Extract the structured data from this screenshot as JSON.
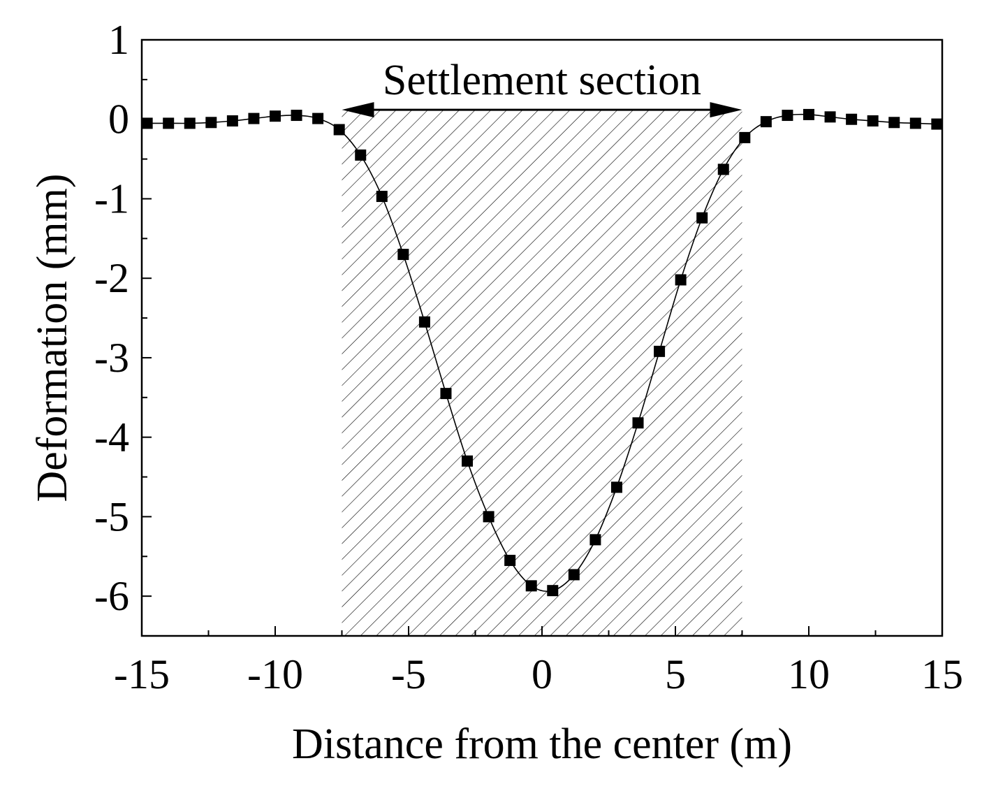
{
  "chart_data": {
    "type": "scatter",
    "xlabel": "Distance from the center (m)",
    "ylabel": "Deformation (mm)",
    "xlim": [
      -15,
      15
    ],
    "ylim": [
      -6.5,
      1
    ],
    "x_ticks": [
      -15,
      -10,
      -5,
      0,
      5,
      10,
      15
    ],
    "x_tick_labels": [
      "-15",
      "-10",
      "-5",
      "0",
      "5",
      "10",
      "15"
    ],
    "y_ticks": [
      1,
      0,
      -1,
      -2,
      -3,
      -4,
      -5,
      -6
    ],
    "y_tick_labels": [
      "1",
      "0",
      "-1",
      "-2",
      "-3",
      "-4",
      "-5",
      "-6"
    ],
    "grid": false,
    "series": [
      {
        "marker": "square",
        "line": "smooth",
        "color": "#000000",
        "points": [
          [
            -14.8,
            -0.05
          ],
          [
            -14.0,
            -0.05
          ],
          [
            -13.2,
            -0.05
          ],
          [
            -12.4,
            -0.04
          ],
          [
            -11.6,
            -0.02
          ],
          [
            -10.8,
            0.01
          ],
          [
            -10.0,
            0.04
          ],
          [
            -9.2,
            0.05
          ],
          [
            -8.4,
            0.01
          ],
          [
            -7.6,
            -0.13
          ],
          [
            -6.8,
            -0.45
          ],
          [
            -6.0,
            -0.97
          ],
          [
            -5.2,
            -1.7
          ],
          [
            -4.4,
            -2.55
          ],
          [
            -3.6,
            -3.45
          ],
          [
            -2.8,
            -4.3
          ],
          [
            -2.0,
            -5.0
          ],
          [
            -1.2,
            -5.55
          ],
          [
            -0.4,
            -5.87
          ],
          [
            0.4,
            -5.93
          ],
          [
            1.2,
            -5.73
          ],
          [
            2.0,
            -5.29
          ],
          [
            2.8,
            -4.63
          ],
          [
            3.6,
            -3.82
          ],
          [
            4.4,
            -2.92
          ],
          [
            5.2,
            -2.02
          ],
          [
            6.0,
            -1.24
          ],
          [
            6.8,
            -0.63
          ],
          [
            7.6,
            -0.23
          ],
          [
            8.4,
            -0.03
          ],
          [
            9.2,
            0.05
          ],
          [
            10.0,
            0.06
          ],
          [
            10.8,
            0.03
          ],
          [
            11.6,
            0.0
          ],
          [
            12.4,
            -0.02
          ],
          [
            13.2,
            -0.04
          ],
          [
            14.0,
            -0.05
          ],
          [
            14.8,
            -0.06
          ]
        ]
      }
    ],
    "highlight_region": {
      "x_range": [
        -7.5,
        7.5
      ],
      "pattern": "diagonal-hatch"
    },
    "annotations": [
      {
        "text": "Settlement section",
        "arrow": "double",
        "x_range": [
          -7.5,
          7.5
        ],
        "y": 0.12
      }
    ]
  }
}
